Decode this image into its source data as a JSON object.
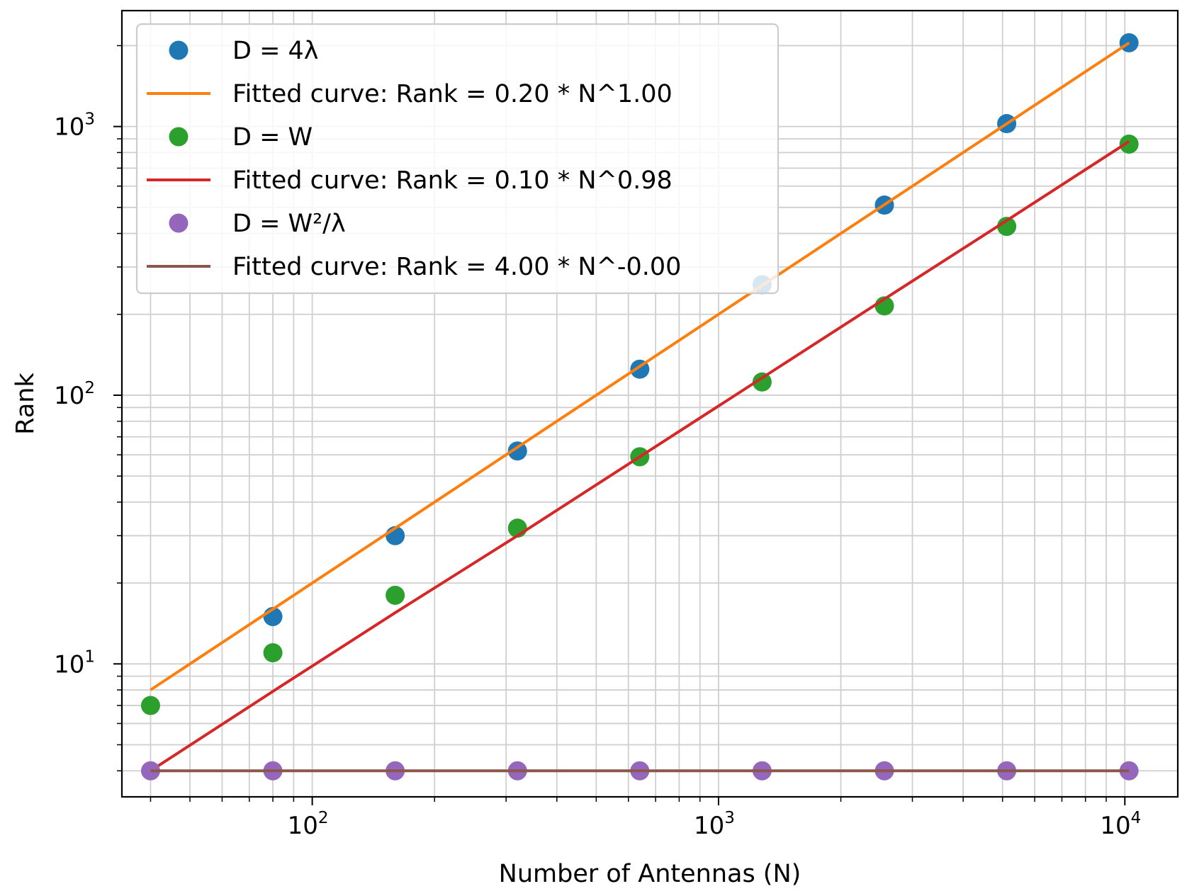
{
  "chart_data": {
    "type": "scatter",
    "xscale": "log",
    "yscale": "log",
    "xlabel": "Number of Antennas (N)",
    "ylabel": "Rank",
    "xlim": [
      34,
      13500
    ],
    "ylim": [
      3.2,
      2700
    ],
    "grid": true,
    "grid_minor": true,
    "legend_position": "upper-left",
    "xticks": [
      {
        "value": 100,
        "base": "10",
        "exp": "2"
      },
      {
        "value": 1000,
        "base": "10",
        "exp": "3"
      },
      {
        "value": 10000,
        "base": "10",
        "exp": "4"
      }
    ],
    "yticks": [
      {
        "value": 10,
        "base": "10",
        "exp": "1"
      },
      {
        "value": 100,
        "base": "10",
        "exp": "2"
      },
      {
        "value": 1000,
        "base": "10",
        "exp": "3"
      }
    ],
    "x": [
      40,
      80,
      160,
      320,
      640,
      1280,
      2560,
      5120,
      10240
    ],
    "series": [
      {
        "name": "D = 4λ",
        "kind": "points",
        "color": "#1f77b4",
        "values": [
          null,
          15,
          30,
          62,
          125,
          258,
          510,
          1025,
          2050
        ]
      },
      {
        "name": "Fitted curve: Rank = 0.20 * N^1.00",
        "kind": "line",
        "color": "#ff7f0e",
        "values": [
          8,
          16,
          32,
          64,
          128,
          256,
          512,
          1024,
          2048
        ]
      },
      {
        "name": "D = W",
        "kind": "points",
        "color": "#2ca02c",
        "values": [
          7,
          11,
          18,
          32,
          59,
          112,
          215,
          425,
          860
        ]
      },
      {
        "name": "Fitted curve: Rank = 0.10 * N^0.98",
        "kind": "line",
        "color": "#d62728",
        "values": [
          4,
          7.9,
          15.5,
          30,
          59,
          116,
          228,
          447,
          880
        ]
      },
      {
        "name": "D = W²/λ",
        "kind": "points",
        "color": "#9467bd",
        "values": [
          4,
          4,
          4,
          4,
          4,
          4,
          4,
          4,
          4
        ]
      },
      {
        "name": "Fitted curve: Rank = 4.00 * N^-0.00",
        "kind": "line",
        "color": "#8c564b",
        "values": [
          4,
          4,
          4,
          4,
          4,
          4,
          4,
          4,
          4
        ]
      }
    ]
  }
}
